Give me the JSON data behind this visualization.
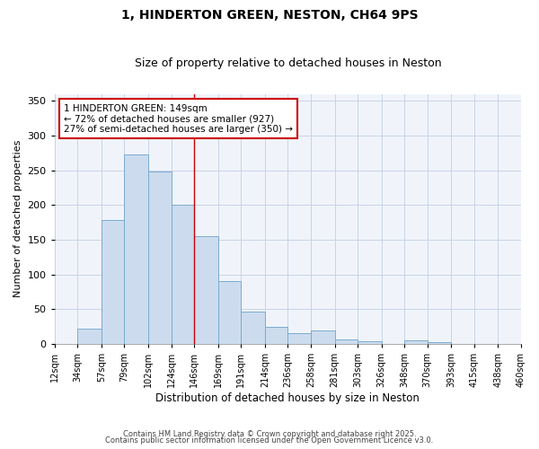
{
  "title": "1, HINDERTON GREEN, NESTON, CH64 9PS",
  "subtitle": "Size of property relative to detached houses in Neston",
  "xlabel": "Distribution of detached houses by size in Neston",
  "ylabel": "Number of detached properties",
  "bar_color": "#ccdcee",
  "bar_edge_color": "#7aabcf",
  "background_color": "#ffffff",
  "axes_bg_color": "#f0f4fa",
  "grid_color": "#c8d4e8",
  "bin_edges": [
    12,
    34,
    57,
    79,
    102,
    124,
    146,
    169,
    191,
    214,
    236,
    258,
    281,
    303,
    326,
    348,
    370,
    393,
    415,
    438,
    460
  ],
  "bar_heights": [
    0,
    22,
    178,
    273,
    248,
    200,
    155,
    90,
    47,
    25,
    15,
    20,
    7,
    4,
    0,
    5,
    2,
    0,
    0,
    0
  ],
  "property_line_x": 146,
  "property_line_color": "#cc0000",
  "annotation_text": "1 HINDERTON GREEN: 149sqm\n← 72% of detached houses are smaller (927)\n27% of semi-detached houses are larger (350) →",
  "annotation_box_color": "#ffffff",
  "annotation_box_edge_color": "#cc0000",
  "ylim": [
    0,
    360
  ],
  "yticks": [
    0,
    50,
    100,
    150,
    200,
    250,
    300,
    350
  ],
  "footer_line1": "Contains HM Land Registry data © Crown copyright and database right 2025.",
  "footer_line2": "Contains public sector information licensed under the Open Government Licence v3.0.",
  "x_tick_labels": [
    "12sqm",
    "34sqm",
    "57sqm",
    "79sqm",
    "102sqm",
    "124sqm",
    "146sqm",
    "169sqm",
    "191sqm",
    "214sqm",
    "236sqm",
    "258sqm",
    "281sqm",
    "303sqm",
    "326sqm",
    "348sqm",
    "370sqm",
    "393sqm",
    "415sqm",
    "438sqm",
    "460sqm"
  ]
}
